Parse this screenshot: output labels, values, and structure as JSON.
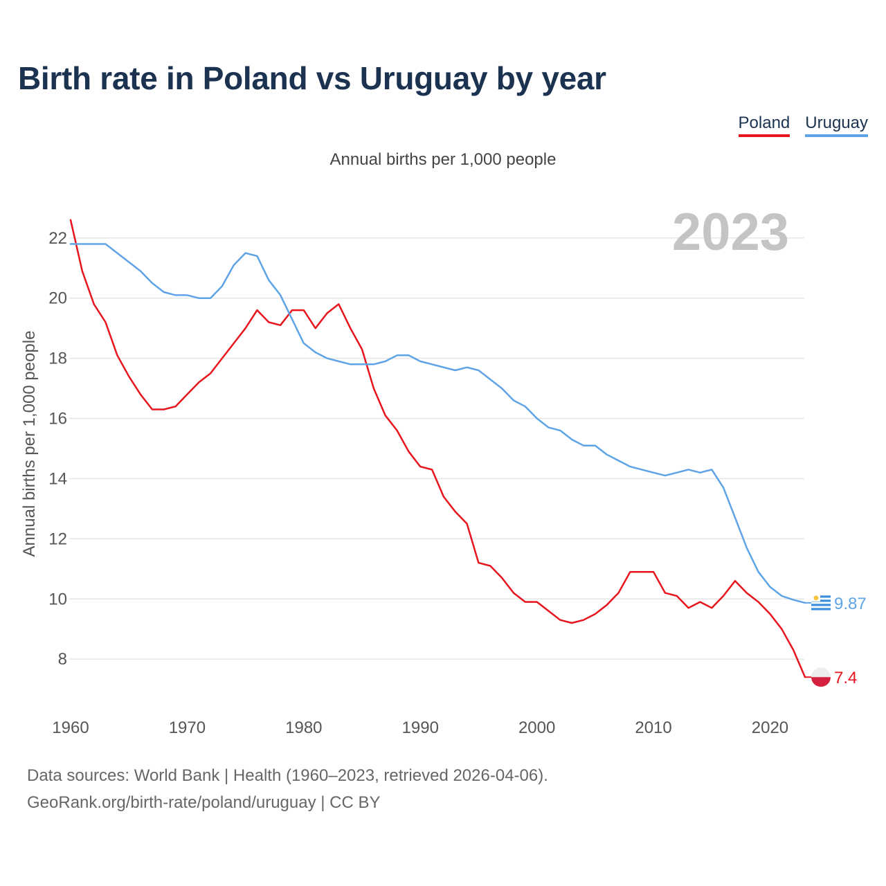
{
  "title": "Birth rate in Poland vs Uruguay by year",
  "subtitle": "Annual births per 1,000 people",
  "legend": [
    "Poland",
    "Uruguay"
  ],
  "source_line1": "Data sources: World Bank | Health (1960–2023, retrieved 2026-04-06).",
  "source_line2": "GeoRank.org/birth-rate/poland/uruguay | CC BY",
  "chart_data": {
    "type": "line",
    "title": "Birth rate in Poland vs Uruguay by year",
    "ylabel": "Annual births per 1,000 people",
    "xlabel": "",
    "year_label": "2023",
    "xlim": [
      1960,
      2023
    ],
    "ylim": [
      6.6,
      23.4
    ],
    "x_ticks": [
      1960,
      1970,
      1980,
      1990,
      2000,
      2010,
      2020
    ],
    "y_ticks": [
      8,
      10,
      12,
      14,
      16,
      18,
      20,
      22
    ],
    "grid": true,
    "x": [
      1960,
      1961,
      1962,
      1963,
      1964,
      1965,
      1966,
      1967,
      1968,
      1969,
      1970,
      1971,
      1972,
      1973,
      1974,
      1975,
      1976,
      1977,
      1978,
      1979,
      1980,
      1981,
      1982,
      1983,
      1984,
      1985,
      1986,
      1987,
      1988,
      1989,
      1990,
      1991,
      1992,
      1993,
      1994,
      1995,
      1996,
      1997,
      1998,
      1999,
      2000,
      2001,
      2002,
      2003,
      2004,
      2005,
      2006,
      2007,
      2008,
      2009,
      2010,
      2011,
      2012,
      2013,
      2014,
      2015,
      2016,
      2017,
      2018,
      2019,
      2020,
      2021,
      2022,
      2023
    ],
    "series": [
      {
        "name": "Poland",
        "color": "#e8141d",
        "end_label": "7.4",
        "values": [
          22.6,
          20.9,
          19.8,
          19.2,
          18.1,
          17.4,
          16.8,
          16.3,
          16.3,
          16.4,
          16.8,
          17.2,
          17.5,
          18.0,
          18.5,
          19.0,
          19.6,
          19.2,
          19.1,
          19.6,
          19.6,
          19.0,
          19.5,
          19.8,
          19.0,
          18.3,
          17.0,
          16.1,
          15.6,
          14.9,
          14.4,
          14.3,
          13.4,
          12.9,
          12.5,
          11.2,
          11.1,
          10.7,
          10.2,
          9.9,
          9.9,
          9.6,
          9.3,
          9.2,
          9.3,
          9.5,
          9.8,
          10.2,
          10.9,
          10.9,
          10.9,
          10.2,
          10.1,
          9.7,
          9.9,
          9.7,
          10.1,
          10.6,
          10.2,
          9.9,
          9.5,
          9.0,
          8.3,
          7.4
        ]
      },
      {
        "name": "Uruguay",
        "color": "#5ea3e6",
        "end_label": "9.87",
        "values": [
          21.8,
          21.8,
          21.8,
          21.8,
          21.5,
          21.2,
          20.9,
          20.5,
          20.2,
          20.1,
          20.1,
          20.0,
          20.0,
          20.4,
          21.1,
          21.5,
          21.4,
          20.6,
          20.1,
          19.3,
          18.5,
          18.2,
          18.0,
          17.9,
          17.8,
          17.8,
          17.8,
          17.9,
          18.1,
          18.1,
          17.9,
          17.8,
          17.7,
          17.6,
          17.7,
          17.6,
          17.3,
          17.0,
          16.6,
          16.4,
          16.0,
          15.7,
          15.6,
          15.3,
          15.1,
          15.1,
          14.8,
          14.6,
          14.4,
          14.3,
          14.2,
          14.1,
          14.2,
          14.3,
          14.2,
          14.3,
          13.7,
          12.7,
          11.7,
          10.9,
          10.4,
          10.1,
          9.97,
          9.87
        ]
      }
    ]
  }
}
